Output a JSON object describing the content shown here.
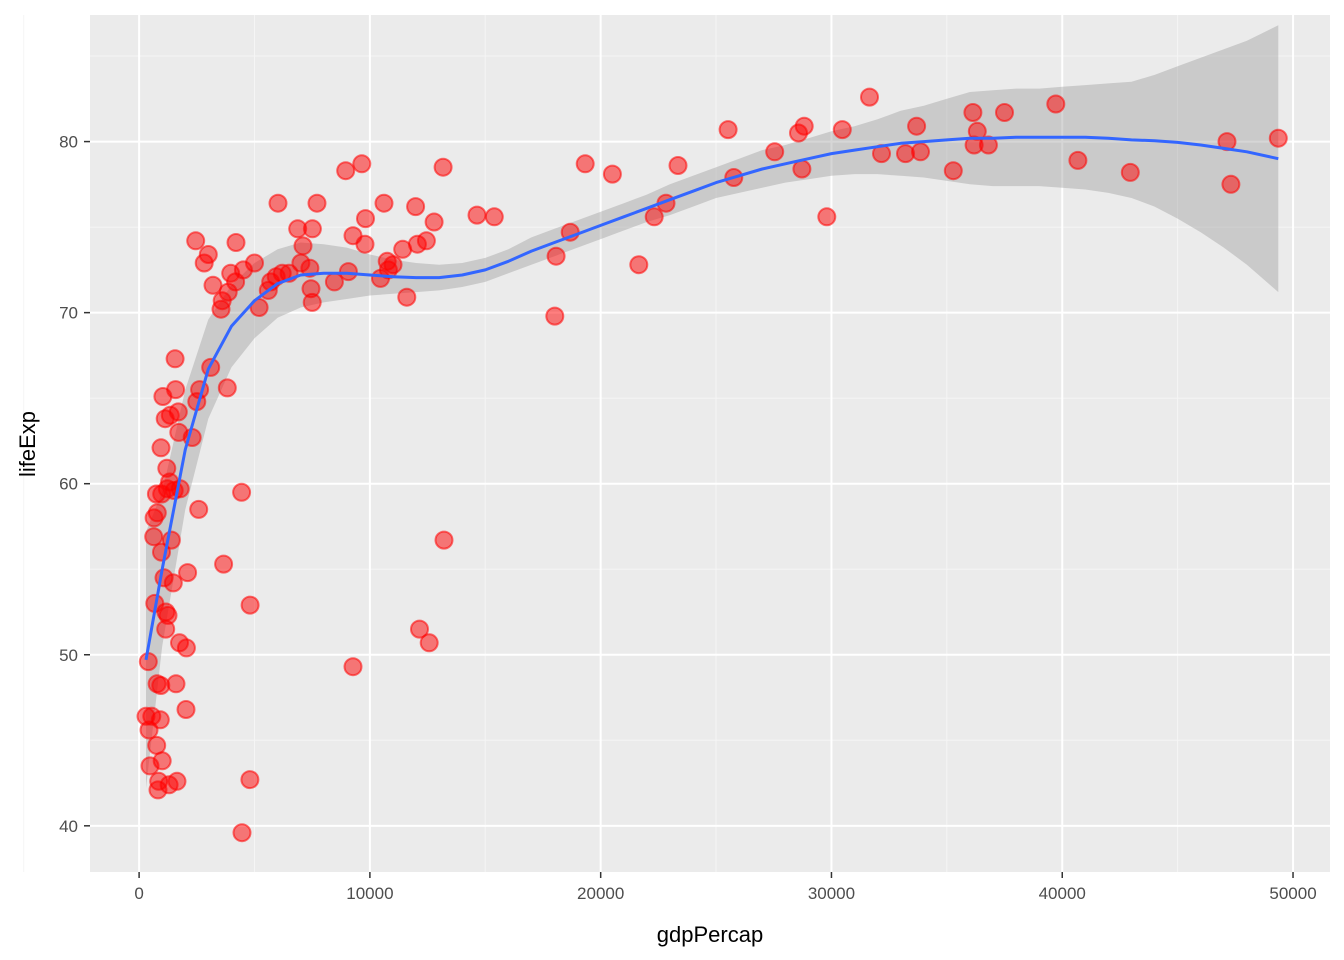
{
  "chart_data": {
    "type": "scatter",
    "title": "",
    "xlabel": "gdpPercap",
    "ylabel": "lifeExp",
    "xlim": [
      -2128,
      51602
    ],
    "ylim": [
      37.3,
      87.4
    ],
    "x_ticks": [
      0,
      10000,
      20000,
      30000,
      40000,
      50000
    ],
    "x_tick_labels": [
      "0",
      "10000",
      "20000",
      "30000",
      "40000",
      "50000"
    ],
    "y_ticks": [
      40,
      50,
      60,
      70,
      80
    ],
    "y_tick_labels": [
      "40",
      "50",
      "60",
      "70",
      "80"
    ],
    "grid": true,
    "legend": "none",
    "colors": {
      "panel_background": "#ebebeb",
      "grid_major": "#ffffff",
      "grid_minor": "#f5f5f5",
      "point_fill": "#ff0000",
      "point_stroke": "#ff0000",
      "smooth_line": "#3366ff",
      "confidence_band": "#999999"
    },
    "points": [
      [
        300,
        46.4
      ],
      [
        430,
        45.6
      ],
      [
        470,
        43.5
      ],
      [
        550,
        46.4
      ],
      [
        400,
        49.6
      ],
      [
        630,
        56.9
      ],
      [
        650,
        58.0
      ],
      [
        680,
        53.0
      ],
      [
        750,
        59.4
      ],
      [
        790,
        58.3
      ],
      [
        760,
        44.7
      ],
      [
        780,
        48.3
      ],
      [
        820,
        42.1
      ],
      [
        850,
        42.6
      ],
      [
        920,
        46.2
      ],
      [
        940,
        48.2
      ],
      [
        950,
        62.1
      ],
      [
        970,
        56.0
      ],
      [
        980,
        59.4
      ],
      [
        1000,
        43.8
      ],
      [
        1030,
        65.1
      ],
      [
        1080,
        54.5
      ],
      [
        1130,
        63.8
      ],
      [
        1150,
        51.5
      ],
      [
        1160,
        52.5
      ],
      [
        1200,
        60.9
      ],
      [
        1220,
        59.7
      ],
      [
        1250,
        52.3
      ],
      [
        1300,
        42.4
      ],
      [
        1320,
        60.1
      ],
      [
        1350,
        64.0
      ],
      [
        1400,
        56.7
      ],
      [
        1480,
        54.2
      ],
      [
        1520,
        59.6
      ],
      [
        1560,
        67.3
      ],
      [
        1580,
        65.5
      ],
      [
        1600,
        48.3
      ],
      [
        1640,
        42.6
      ],
      [
        1700,
        64.2
      ],
      [
        1720,
        63.0
      ],
      [
        1750,
        50.7
      ],
      [
        1780,
        59.7
      ],
      [
        2030,
        46.8
      ],
      [
        2050,
        50.4
      ],
      [
        2100,
        54.8
      ],
      [
        2300,
        62.7
      ],
      [
        2450,
        74.2
      ],
      [
        2500,
        64.8
      ],
      [
        2580,
        58.5
      ],
      [
        2620,
        65.5
      ],
      [
        2820,
        72.9
      ],
      [
        3000,
        73.4
      ],
      [
        3100,
        66.8
      ],
      [
        3200,
        71.6
      ],
      [
        3550,
        70.2
      ],
      [
        3600,
        70.7
      ],
      [
        3660,
        55.3
      ],
      [
        3820,
        65.6
      ],
      [
        3860,
        71.2
      ],
      [
        3970,
        72.3
      ],
      [
        4180,
        71.8
      ],
      [
        4200,
        74.1
      ],
      [
        4440,
        59.5
      ],
      [
        4460,
        39.6
      ],
      [
        4520,
        72.5
      ],
      [
        4800,
        42.7
      ],
      [
        4810,
        52.9
      ],
      [
        5000,
        72.9
      ],
      [
        5200,
        70.3
      ],
      [
        5600,
        71.3
      ],
      [
        5700,
        71.8
      ],
      [
        5940,
        72.1
      ],
      [
        6020,
        76.4
      ],
      [
        6200,
        72.3
      ],
      [
        6500,
        72.3
      ],
      [
        6870,
        74.9
      ],
      [
        7010,
        72.9
      ],
      [
        7100,
        73.9
      ],
      [
        7400,
        72.6
      ],
      [
        7450,
        71.4
      ],
      [
        7500,
        70.6
      ],
      [
        7510,
        74.9
      ],
      [
        7710,
        76.4
      ],
      [
        8460,
        71.8
      ],
      [
        8950,
        78.3
      ],
      [
        9070,
        72.4
      ],
      [
        9270,
        74.5
      ],
      [
        9270,
        49.3
      ],
      [
        9650,
        78.7
      ],
      [
        9790,
        74.0
      ],
      [
        9810,
        75.5
      ],
      [
        10460,
        72.0
      ],
      [
        10610,
        76.4
      ],
      [
        10750,
        73.0
      ],
      [
        10800,
        72.5
      ],
      [
        11000,
        72.8
      ],
      [
        11420,
        73.7
      ],
      [
        11600,
        70.9
      ],
      [
        11980,
        76.2
      ],
      [
        12060,
        74.0
      ],
      [
        12150,
        51.5
      ],
      [
        12450,
        74.2
      ],
      [
        12570,
        50.7
      ],
      [
        12780,
        75.3
      ],
      [
        13170,
        78.5
      ],
      [
        13210,
        56.7
      ],
      [
        14640,
        75.7
      ],
      [
        15390,
        75.6
      ],
      [
        18010,
        69.8
      ],
      [
        18070,
        73.3
      ],
      [
        18680,
        74.7
      ],
      [
        19330,
        78.7
      ],
      [
        20510,
        78.1
      ],
      [
        21650,
        72.8
      ],
      [
        22320,
        75.6
      ],
      [
        22830,
        76.4
      ],
      [
        23350,
        78.6
      ],
      [
        25520,
        80.7
      ],
      [
        25770,
        77.9
      ],
      [
        27540,
        79.4
      ],
      [
        28570,
        80.5
      ],
      [
        28720,
        78.4
      ],
      [
        28820,
        80.9
      ],
      [
        29800,
        75.6
      ],
      [
        30470,
        80.7
      ],
      [
        31650,
        82.6
      ],
      [
        32170,
        79.3
      ],
      [
        33210,
        79.3
      ],
      [
        33860,
        79.4
      ],
      [
        33690,
        80.9
      ],
      [
        35280,
        78.3
      ],
      [
        36130,
        81.7
      ],
      [
        36180,
        79.8
      ],
      [
        36320,
        80.6
      ],
      [
        36800,
        79.8
      ],
      [
        37500,
        81.7
      ],
      [
        39720,
        82.2
      ],
      [
        40680,
        78.9
      ],
      [
        42950,
        78.2
      ],
      [
        47140,
        80.0
      ],
      [
        47310,
        77.5
      ],
      [
        49360,
        80.2
      ]
    ],
    "smooth_fit": [
      [
        300,
        49.7
      ],
      [
        1000,
        55.0
      ],
      [
        2000,
        62.0
      ],
      [
        3000,
        66.7
      ],
      [
        4000,
        69.2
      ],
      [
        5000,
        70.7
      ],
      [
        6000,
        71.7
      ],
      [
        7000,
        72.2
      ],
      [
        8000,
        72.3
      ],
      [
        9000,
        72.3
      ],
      [
        10000,
        72.2
      ],
      [
        11000,
        72.1
      ],
      [
        12000,
        72.05
      ],
      [
        13000,
        72.05
      ],
      [
        14000,
        72.2
      ],
      [
        15000,
        72.5
      ],
      [
        16000,
        73.0
      ],
      [
        17000,
        73.6
      ],
      [
        18000,
        74.1
      ],
      [
        19000,
        74.6
      ],
      [
        20000,
        75.1
      ],
      [
        21000,
        75.6
      ],
      [
        22000,
        76.1
      ],
      [
        23000,
        76.6
      ],
      [
        24000,
        77.1
      ],
      [
        25000,
        77.6
      ],
      [
        26000,
        78.0
      ],
      [
        27000,
        78.4
      ],
      [
        28000,
        78.7
      ],
      [
        29000,
        79.0
      ],
      [
        30000,
        79.3
      ],
      [
        31000,
        79.5
      ],
      [
        32000,
        79.7
      ],
      [
        33000,
        79.9
      ],
      [
        34000,
        80.0
      ],
      [
        35000,
        80.1
      ],
      [
        36000,
        80.2
      ],
      [
        37000,
        80.2
      ],
      [
        38000,
        80.25
      ],
      [
        39000,
        80.25
      ],
      [
        40000,
        80.25
      ],
      [
        41000,
        80.25
      ],
      [
        42000,
        80.2
      ],
      [
        43000,
        80.1
      ],
      [
        44000,
        80.05
      ],
      [
        45000,
        79.95
      ],
      [
        46000,
        79.8
      ],
      [
        47000,
        79.6
      ],
      [
        48000,
        79.4
      ],
      [
        49360,
        79.0
      ]
    ],
    "band_lower": [
      [
        300,
        42.2
      ],
      [
        1000,
        50.5
      ],
      [
        2000,
        58.5
      ],
      [
        3000,
        63.8
      ],
      [
        4000,
        66.8
      ],
      [
        5000,
        68.5
      ],
      [
        6000,
        69.7
      ],
      [
        7000,
        70.3
      ],
      [
        8000,
        70.6
      ],
      [
        9000,
        70.8
      ],
      [
        10000,
        71.0
      ],
      [
        11000,
        71.1
      ],
      [
        12000,
        71.2
      ],
      [
        13000,
        71.3
      ],
      [
        14000,
        71.5
      ],
      [
        15000,
        71.8
      ],
      [
        16000,
        72.3
      ],
      [
        17000,
        72.8
      ],
      [
        18000,
        73.3
      ],
      [
        19000,
        73.8
      ],
      [
        20000,
        74.3
      ],
      [
        21000,
        74.8
      ],
      [
        22000,
        75.3
      ],
      [
        23000,
        75.7
      ],
      [
        24000,
        76.2
      ],
      [
        25000,
        76.7
      ],
      [
        26000,
        77.0
      ],
      [
        27000,
        77.3
      ],
      [
        28000,
        77.6
      ],
      [
        29000,
        77.8
      ],
      [
        30000,
        78.0
      ],
      [
        31000,
        78.1
      ],
      [
        32000,
        78.1
      ],
      [
        33000,
        78.0
      ],
      [
        34000,
        77.9
      ],
      [
        35000,
        77.7
      ],
      [
        36000,
        77.5
      ],
      [
        37000,
        77.4
      ],
      [
        38000,
        77.4
      ],
      [
        39000,
        77.4
      ],
      [
        40000,
        77.3
      ],
      [
        41000,
        77.2
      ],
      [
        42000,
        77.0
      ],
      [
        43000,
        76.7
      ],
      [
        44000,
        76.2
      ],
      [
        45000,
        75.5
      ],
      [
        46000,
        74.7
      ],
      [
        47000,
        73.8
      ],
      [
        48000,
        72.8
      ],
      [
        49360,
        71.2
      ]
    ],
    "band_upper": [
      [
        300,
        57.2
      ],
      [
        1000,
        59.5
      ],
      [
        2000,
        65.5
      ],
      [
        3000,
        69.6
      ],
      [
        4000,
        71.6
      ],
      [
        5000,
        72.9
      ],
      [
        6000,
        73.7
      ],
      [
        7000,
        74.1
      ],
      [
        8000,
        74.0
      ],
      [
        9000,
        73.8
      ],
      [
        10000,
        73.4
      ],
      [
        11000,
        73.1
      ],
      [
        12000,
        72.9
      ],
      [
        13000,
        72.8
      ],
      [
        14000,
        72.9
      ],
      [
        15000,
        73.2
      ],
      [
        16000,
        73.7
      ],
      [
        17000,
        74.4
      ],
      [
        18000,
        74.9
      ],
      [
        19000,
        75.4
      ],
      [
        20000,
        75.9
      ],
      [
        21000,
        76.4
      ],
      [
        22000,
        76.9
      ],
      [
        23000,
        77.5
      ],
      [
        24000,
        78.0
      ],
      [
        25000,
        78.5
      ],
      [
        26000,
        79.0
      ],
      [
        27000,
        79.5
      ],
      [
        28000,
        79.8
      ],
      [
        29000,
        80.2
      ],
      [
        30000,
        80.6
      ],
      [
        31000,
        80.9
      ],
      [
        32000,
        81.3
      ],
      [
        33000,
        81.8
      ],
      [
        34000,
        82.1
      ],
      [
        35000,
        82.5
      ],
      [
        36000,
        82.9
      ],
      [
        37000,
        83.0
      ],
      [
        38000,
        83.1
      ],
      [
        39000,
        83.1
      ],
      [
        40000,
        83.2
      ],
      [
        41000,
        83.3
      ],
      [
        42000,
        83.4
      ],
      [
        43000,
        83.5
      ],
      [
        44000,
        83.9
      ],
      [
        45000,
        84.4
      ],
      [
        46000,
        84.9
      ],
      [
        47000,
        85.4
      ],
      [
        48000,
        85.9
      ],
      [
        49360,
        86.8
      ]
    ]
  }
}
